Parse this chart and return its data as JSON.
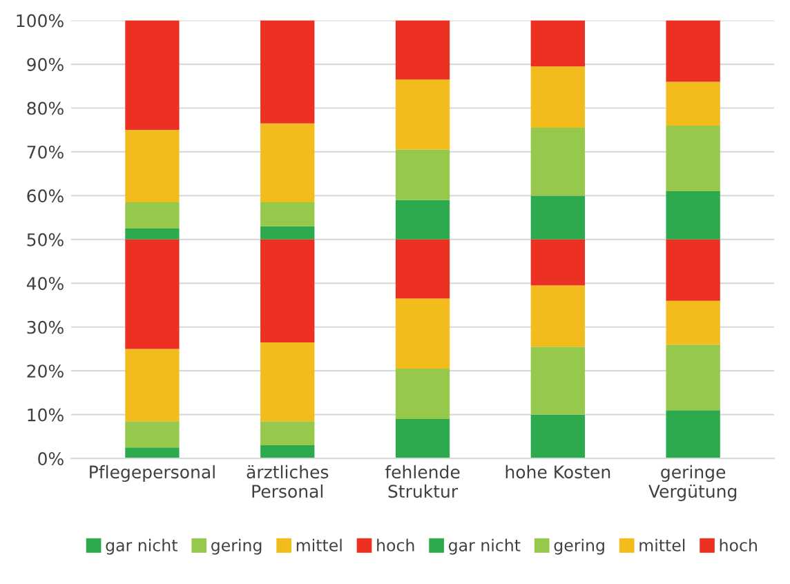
{
  "chart_data": {
    "type": "bar",
    "stacked": true,
    "categories": [
      "Pflegepersonal",
      "ärztliches\nPersonal",
      "fehlende\nStruktur",
      "hohe Kosten",
      "geringe\nVergütung"
    ],
    "series": [
      {
        "name": "gar nicht",
        "color": "#2eaa4e",
        "values": [
          2.5,
          3,
          9,
          10,
          11
        ]
      },
      {
        "name": "gering",
        "color": "#96c84c",
        "values": [
          6,
          5.5,
          11.5,
          15.5,
          15
        ]
      },
      {
        "name": "mittel",
        "color": "#f2bd1c",
        "values": [
          16.5,
          18,
          16,
          14,
          10
        ]
      },
      {
        "name": "hoch",
        "color": "#ec3122",
        "values": [
          25,
          23.5,
          13.5,
          10.5,
          14
        ]
      },
      {
        "name": "gar nicht",
        "color": "#2eaa4e",
        "values": [
          2.5,
          3,
          9,
          10,
          11
        ]
      },
      {
        "name": "gering",
        "color": "#96c84c",
        "values": [
          6,
          5.5,
          11.5,
          15.5,
          15
        ]
      },
      {
        "name": "mittel",
        "color": "#f2bd1c",
        "values": [
          16.5,
          18,
          16,
          14,
          10
        ]
      },
      {
        "name": "hoch",
        "color": "#ec3122",
        "values": [
          25,
          23.5,
          13.5,
          10.5,
          14
        ]
      }
    ],
    "ylim": [
      0,
      100
    ],
    "yticks": [
      {
        "value": 0,
        "label": "0%"
      },
      {
        "value": 10,
        "label": "10%"
      },
      {
        "value": 20,
        "label": "20%"
      },
      {
        "value": 30,
        "label": "30%"
      },
      {
        "value": 40,
        "label": "40%"
      },
      {
        "value": 50,
        "label": "50%"
      },
      {
        "value": 60,
        "label": "60%"
      },
      {
        "value": 70,
        "label": "70%"
      },
      {
        "value": 80,
        "label": "80%"
      },
      {
        "value": 90,
        "label": "90%"
      },
      {
        "value": 100,
        "label": "100%"
      }
    ],
    "grid": "y",
    "legend": "bottom"
  }
}
